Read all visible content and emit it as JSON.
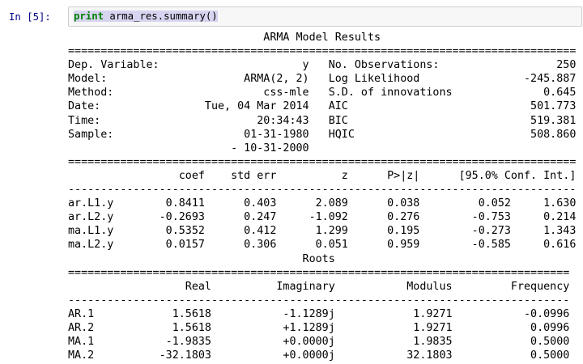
{
  "notebook": {
    "cell": {
      "prompt": "In [5]:",
      "code_keyword": "print",
      "code_rest": " arma_res.summary()"
    },
    "output": {
      "lines": [
        "                              ARMA Model Results",
        "==============================================================================",
        "Dep. Variable:                      y   No. Observations:                  250",
        "Model:                     ARMA(2, 2)   Log Likelihood                -245.887",
        "Method:                       css-mle   S.D. of innovations              0.645",
        "Date:                Tue, 04 Mar 2014   AIC                            501.773",
        "Time:                        20:34:43   BIC                            519.381",
        "Sample:                    01-31-1980   HQIC                           508.860",
        "                         - 10-31-2000",
        "==============================================================================",
        "                 coef    std err          z      P>|z|      [95.0% Conf. Int.]",
        "------------------------------------------------------------------------------",
        "ar.L1.y        0.8411      0.403      2.089      0.038         0.052     1.630",
        "ar.L2.y       -0.2693      0.247     -1.092      0.276        -0.753     0.214",
        "ma.L1.y        0.5352      0.412      1.299      0.195        -0.273     1.343",
        "ma.L2.y        0.0157      0.306      0.051      0.959        -0.585     0.616",
        "                                    Roots",
        "=============================================================================",
        "                  Real          Imaginary           Modulus         Frequency",
        "-----------------------------------------------------------------------------",
        "AR.1            1.5618           -1.1289j            1.9271           -0.0996",
        "AR.2            1.5618           +1.1289j            1.9271            0.0996",
        "MA.1           -1.9835           +0.0000j            1.9835            0.5000",
        "MA.2          -32.1803           +0.0000j           32.1803            0.5000"
      ]
    }
  },
  "summary": {
    "title": "ARMA Model Results",
    "info": [
      {
        "label": "Dep. Variable:",
        "value": "y"
      },
      {
        "label": "Model:",
        "value": "ARMA(2, 2)"
      },
      {
        "label": "Method:",
        "value": "css-mle"
      },
      {
        "label": "Date:",
        "value": "Tue, 04 Mar 2014"
      },
      {
        "label": "Time:",
        "value": "20:34:43"
      },
      {
        "label": "Sample:",
        "value": "01-31-1980 - 10-31-2000"
      }
    ],
    "stats": [
      {
        "label": "No. Observations:",
        "value": "250"
      },
      {
        "label": "Log Likelihood",
        "value": "-245.887"
      },
      {
        "label": "S.D. of innovations",
        "value": "0.645"
      },
      {
        "label": "AIC",
        "value": "501.773"
      },
      {
        "label": "BIC",
        "value": "519.381"
      },
      {
        "label": "HQIC",
        "value": "508.860"
      }
    ],
    "coefficients": {
      "headers": [
        "",
        "coef",
        "std err",
        "z",
        "P>|z|",
        "[95.0% Conf. Int.]"
      ],
      "rows": [
        [
          "ar.L1.y",
          "0.8411",
          "0.403",
          "2.089",
          "0.038",
          "0.052",
          "1.630"
        ],
        [
          "ar.L2.y",
          "-0.2693",
          "0.247",
          "-1.092",
          "0.276",
          "-0.753",
          "0.214"
        ],
        [
          "ma.L1.y",
          "0.5352",
          "0.412",
          "1.299",
          "0.195",
          "-0.273",
          "1.343"
        ],
        [
          "ma.L2.y",
          "0.0157",
          "0.306",
          "0.051",
          "0.959",
          "-0.585",
          "0.616"
        ]
      ]
    },
    "roots": {
      "title": "Roots",
      "headers": [
        "",
        "Real",
        "Imaginary",
        "Modulus",
        "Frequency"
      ],
      "rows": [
        [
          "AR.1",
          "1.5618",
          "-1.1289j",
          "1.9271",
          "-0.0996"
        ],
        [
          "AR.2",
          "1.5618",
          "+1.1289j",
          "1.9271",
          "0.0996"
        ],
        [
          "MA.1",
          "-1.9835",
          "+0.0000j",
          "1.9835",
          "0.5000"
        ],
        [
          "MA.2",
          "-32.1803",
          "+0.0000j",
          "32.1803",
          "0.5000"
        ]
      ]
    }
  },
  "colors": {
    "prompt_text": "#000080",
    "keyword": "#008000",
    "selection_background": "#d7d4f0",
    "cell_border": "#cfcfcf",
    "cell_background": "#f7f7f7"
  }
}
